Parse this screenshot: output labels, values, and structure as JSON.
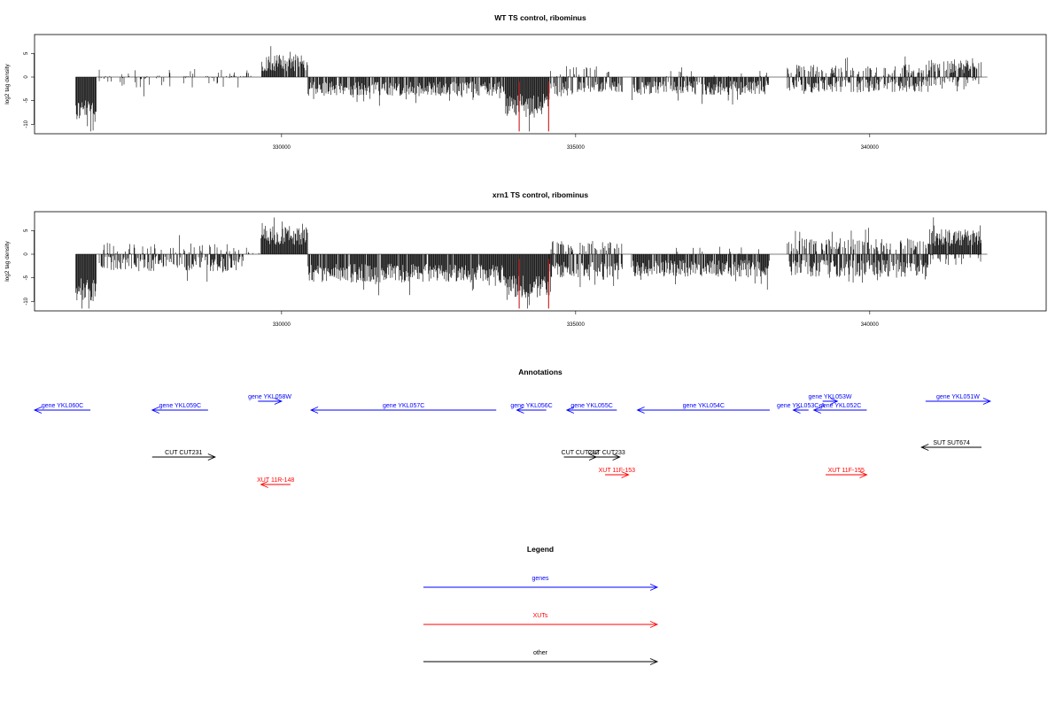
{
  "chart_data": [
    {
      "type": "bar",
      "title": "WT TS control, ribominus",
      "ylabel": "log2 tag density",
      "x_range": [
        326500,
        342000
      ],
      "xlim": [
        325800,
        343000
      ],
      "ylim": [
        -12,
        9
      ],
      "x_ticks": [
        330000,
        335000,
        340000
      ],
      "x_tick_labels": [
        "330000",
        "335000",
        "340000"
      ],
      "y_ticks": [
        -10,
        -5,
        0,
        5
      ],
      "y_tick_labels": [
        "-10",
        "-5",
        "0",
        "5"
      ],
      "highlight_x": [
        334040,
        334540
      ],
      "highlight_color": "#cc0000",
      "regions": [
        {
          "from": 326500,
          "to": 326850,
          "sign": -1,
          "mean": 7,
          "spread": 2.5,
          "density": 1.0
        },
        {
          "from": 326900,
          "to": 329350,
          "sign": 1,
          "mean": 0.5,
          "spread": 1.2,
          "density": 0.12
        },
        {
          "from": 326900,
          "to": 329350,
          "sign": -1,
          "mean": 0.8,
          "spread": 1.5,
          "density": 0.15
        },
        {
          "from": 329350,
          "to": 329650,
          "sign": 1,
          "mean": 0.8,
          "spread": 1,
          "density": 0.15
        },
        {
          "from": 329650,
          "to": 330450,
          "sign": 1,
          "mean": 3,
          "spread": 1.8,
          "density": 0.9
        },
        {
          "from": 330450,
          "to": 333800,
          "sign": -1,
          "mean": 2.5,
          "spread": 1.5,
          "density": 0.85
        },
        {
          "from": 333800,
          "to": 334550,
          "sign": -1,
          "mean": 6,
          "spread": 2.5,
          "density": 1.0
        },
        {
          "from": 334550,
          "to": 335000,
          "sign": -1,
          "mean": 2.5,
          "spread": 1.6,
          "density": 0.6
        },
        {
          "from": 334550,
          "to": 335600,
          "sign": 1,
          "mean": 1.2,
          "spread": 1.2,
          "density": 0.2
        },
        {
          "from": 335000,
          "to": 335800,
          "sign": -1,
          "mean": 2,
          "spread": 1.2,
          "density": 0.7
        },
        {
          "from": 335950,
          "to": 338300,
          "sign": -1,
          "mean": 2.3,
          "spread": 1.5,
          "density": 0.8
        },
        {
          "from": 336500,
          "to": 338300,
          "sign": 1,
          "mean": 0.6,
          "spread": 0.8,
          "density": 0.1
        },
        {
          "from": 338600,
          "to": 341000,
          "sign": -1,
          "mean": 1.8,
          "spread": 1.4,
          "density": 0.7
        },
        {
          "from": 338600,
          "to": 341000,
          "sign": 1,
          "mean": 1.5,
          "spread": 1.2,
          "density": 0.35
        },
        {
          "from": 341000,
          "to": 341900,
          "sign": 1,
          "mean": 2.3,
          "spread": 1.5,
          "density": 0.7
        },
        {
          "from": 341000,
          "to": 341900,
          "sign": -1,
          "mean": 1,
          "spread": 1,
          "density": 0.3
        }
      ]
    },
    {
      "type": "bar",
      "title": "xrn1 TS control, ribominus",
      "ylabel": "log2 tag density",
      "x_range": [
        326500,
        342000
      ],
      "xlim": [
        325800,
        343000
      ],
      "ylim": [
        -12,
        9
      ],
      "x_ticks": [
        330000,
        335000,
        340000
      ],
      "x_tick_labels": [
        "330000",
        "335000",
        "340000"
      ],
      "y_ticks": [
        -10,
        -5,
        0,
        5
      ],
      "y_tick_labels": [
        "-10",
        "-5",
        "0",
        "5"
      ],
      "highlight_x": [
        334040,
        334540
      ],
      "highlight_color": "#cc0000",
      "regions": [
        {
          "from": 326500,
          "to": 326850,
          "sign": -1,
          "mean": 7.5,
          "spread": 2.5,
          "density": 1.0
        },
        {
          "from": 326900,
          "to": 329350,
          "sign": -1,
          "mean": 2,
          "spread": 1.6,
          "density": 0.55
        },
        {
          "from": 326900,
          "to": 329350,
          "sign": 1,
          "mean": 1,
          "spread": 1.3,
          "density": 0.2
        },
        {
          "from": 329350,
          "to": 329650,
          "sign": 1,
          "mean": 1,
          "spread": 1,
          "density": 0.2
        },
        {
          "from": 329650,
          "to": 330450,
          "sign": 1,
          "mean": 4,
          "spread": 2,
          "density": 1.0
        },
        {
          "from": 330450,
          "to": 333800,
          "sign": -1,
          "mean": 4,
          "spread": 2,
          "density": 0.95
        },
        {
          "from": 333800,
          "to": 334550,
          "sign": -1,
          "mean": 7,
          "spread": 2.5,
          "density": 1.0
        },
        {
          "from": 334550,
          "to": 335800,
          "sign": -1,
          "mean": 3.5,
          "spread": 2,
          "density": 0.8
        },
        {
          "from": 334550,
          "to": 335800,
          "sign": 1,
          "mean": 1.5,
          "spread": 1.3,
          "density": 0.35
        },
        {
          "from": 335950,
          "to": 338300,
          "sign": -1,
          "mean": 3,
          "spread": 1.8,
          "density": 0.9
        },
        {
          "from": 336500,
          "to": 338300,
          "sign": 1,
          "mean": 0.8,
          "spread": 0.8,
          "density": 0.1
        },
        {
          "from": 338600,
          "to": 341000,
          "sign": -1,
          "mean": 3,
          "spread": 1.8,
          "density": 0.75
        },
        {
          "from": 338600,
          "to": 341000,
          "sign": 1,
          "mean": 2,
          "spread": 1.5,
          "density": 0.45
        },
        {
          "from": 341000,
          "to": 341900,
          "sign": 1,
          "mean": 3.5,
          "spread": 1.8,
          "density": 0.95
        },
        {
          "from": 341000,
          "to": 341900,
          "sign": -1,
          "mean": 1.2,
          "spread": 1.1,
          "density": 0.3
        }
      ]
    }
  ],
  "annotations": {
    "title": "Annotations",
    "colors": {
      "genes": "#0000ff",
      "xuts": "#ff0000",
      "other": "#000000"
    },
    "features": [
      {
        "label": "gene YKL060C",
        "kind": "genes",
        "dir": "<",
        "from": 325800,
        "to": 326750,
        "row": 1
      },
      {
        "label": "gene YKL059C",
        "kind": "genes",
        "dir": "<",
        "from": 327800,
        "to": 328750,
        "row": 1
      },
      {
        "label": "gene YKL058W",
        "kind": "genes",
        "dir": ">",
        "from": 329600,
        "to": 330000,
        "row": 0
      },
      {
        "label": "gene YKL057C",
        "kind": "genes",
        "dir": "<",
        "from": 330500,
        "to": 333650,
        "row": 1
      },
      {
        "label": "gene YKL056C",
        "kind": "genes",
        "dir": "<",
        "from": 334000,
        "to": 334500,
        "row": 1
      },
      {
        "label": "gene YKL055C",
        "kind": "genes",
        "dir": "<",
        "from": 334850,
        "to": 335700,
        "row": 1
      },
      {
        "label": "gene YKL054C",
        "kind": "genes",
        "dir": "<",
        "from": 336050,
        "to": 338300,
        "row": 1
      },
      {
        "label": "gene YKL053C-A",
        "kind": "genes",
        "dir": "<",
        "from": 338700,
        "to": 338960,
        "row": 1
      },
      {
        "label": "gene YKL053W",
        "kind": "genes",
        "dir": ">",
        "from": 339200,
        "to": 339450,
        "row": 0
      },
      {
        "label": "gene YKL052C",
        "kind": "genes",
        "dir": "<",
        "from": 339050,
        "to": 339950,
        "row": 1
      },
      {
        "label": "gene YKL051W",
        "kind": "genes",
        "dir": ">",
        "from": 340950,
        "to": 342050,
        "row": 0
      },
      {
        "label": "CUT CUT231",
        "kind": "other",
        "dir": ">",
        "from": 327800,
        "to": 328870,
        "row": 2
      },
      {
        "label": "CUT CUT232",
        "kind": "other",
        "dir": ">",
        "from": 334800,
        "to": 335350,
        "row": 2
      },
      {
        "label": "CUT CUT233",
        "kind": "other",
        "dir": ">",
        "from": 335300,
        "to": 335750,
        "row": 2
      },
      {
        "label": "SUT SUT674",
        "kind": "other",
        "dir": "<",
        "from": 340880,
        "to": 341900,
        "row": 2.5
      },
      {
        "label": "XUT 11R-148",
        "kind": "xuts",
        "dir": "<",
        "from": 329650,
        "to": 330150,
        "row": 4
      },
      {
        "label": "XUT 11F-153",
        "kind": "xuts",
        "dir": ">",
        "from": 335500,
        "to": 335900,
        "row": 3
      },
      {
        "label": "XUT 11F-155",
        "kind": "xuts",
        "dir": ">",
        "from": 339250,
        "to": 339950,
        "row": 3
      }
    ]
  },
  "legend": {
    "title": "Legend",
    "items": [
      {
        "label": "genes",
        "color": "#0000ff"
      },
      {
        "label": "XUTs",
        "color": "#ff0000"
      },
      {
        "label": "other",
        "color": "#000000"
      }
    ]
  }
}
